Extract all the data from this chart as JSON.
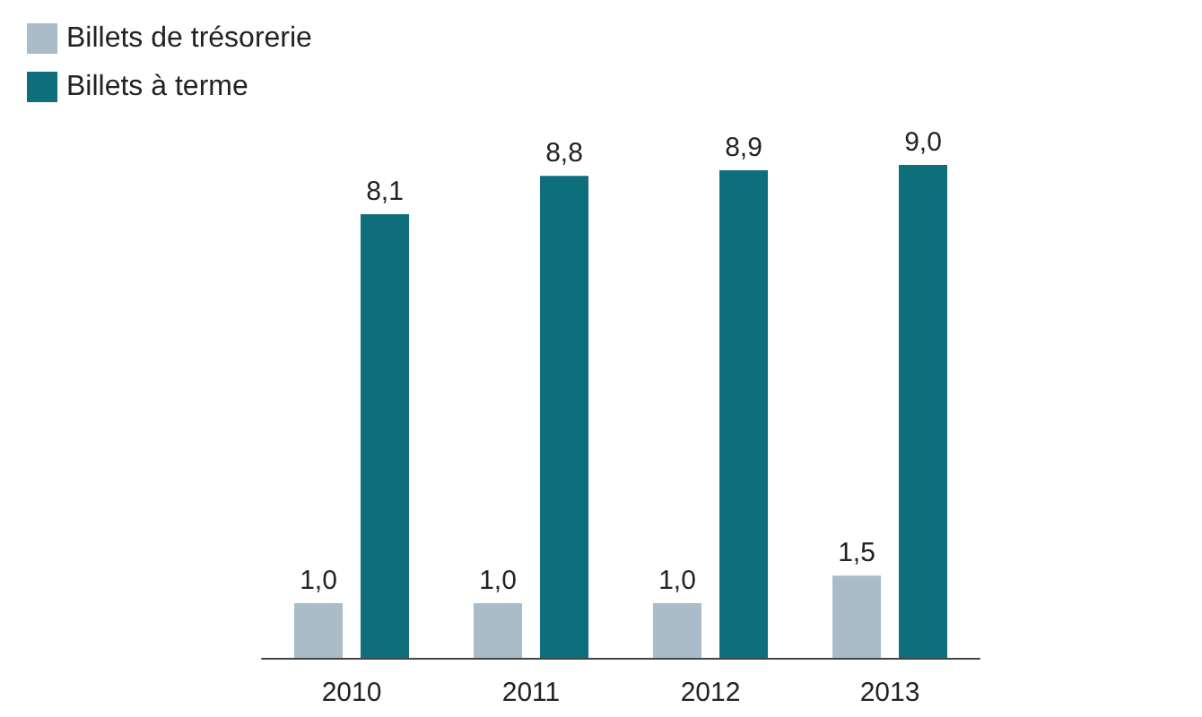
{
  "chart_data": {
    "type": "bar",
    "categories": [
      "2010",
      "2011",
      "2012",
      "2013"
    ],
    "series": [
      {
        "name": "Billets de trésorerie",
        "color": "#a9bcc8",
        "values": [
          1.0,
          1.0,
          1.0,
          1.5
        ],
        "value_labels": [
          "1,0",
          "1,0",
          "1,0",
          "1,5"
        ]
      },
      {
        "name": "Billets à terme",
        "color": "#0f6e7c",
        "values": [
          8.1,
          8.8,
          8.9,
          9.0
        ],
        "value_labels": [
          "8,1",
          "8,8",
          "8,9",
          "9,0"
        ]
      }
    ],
    "legend": "top left"
  }
}
